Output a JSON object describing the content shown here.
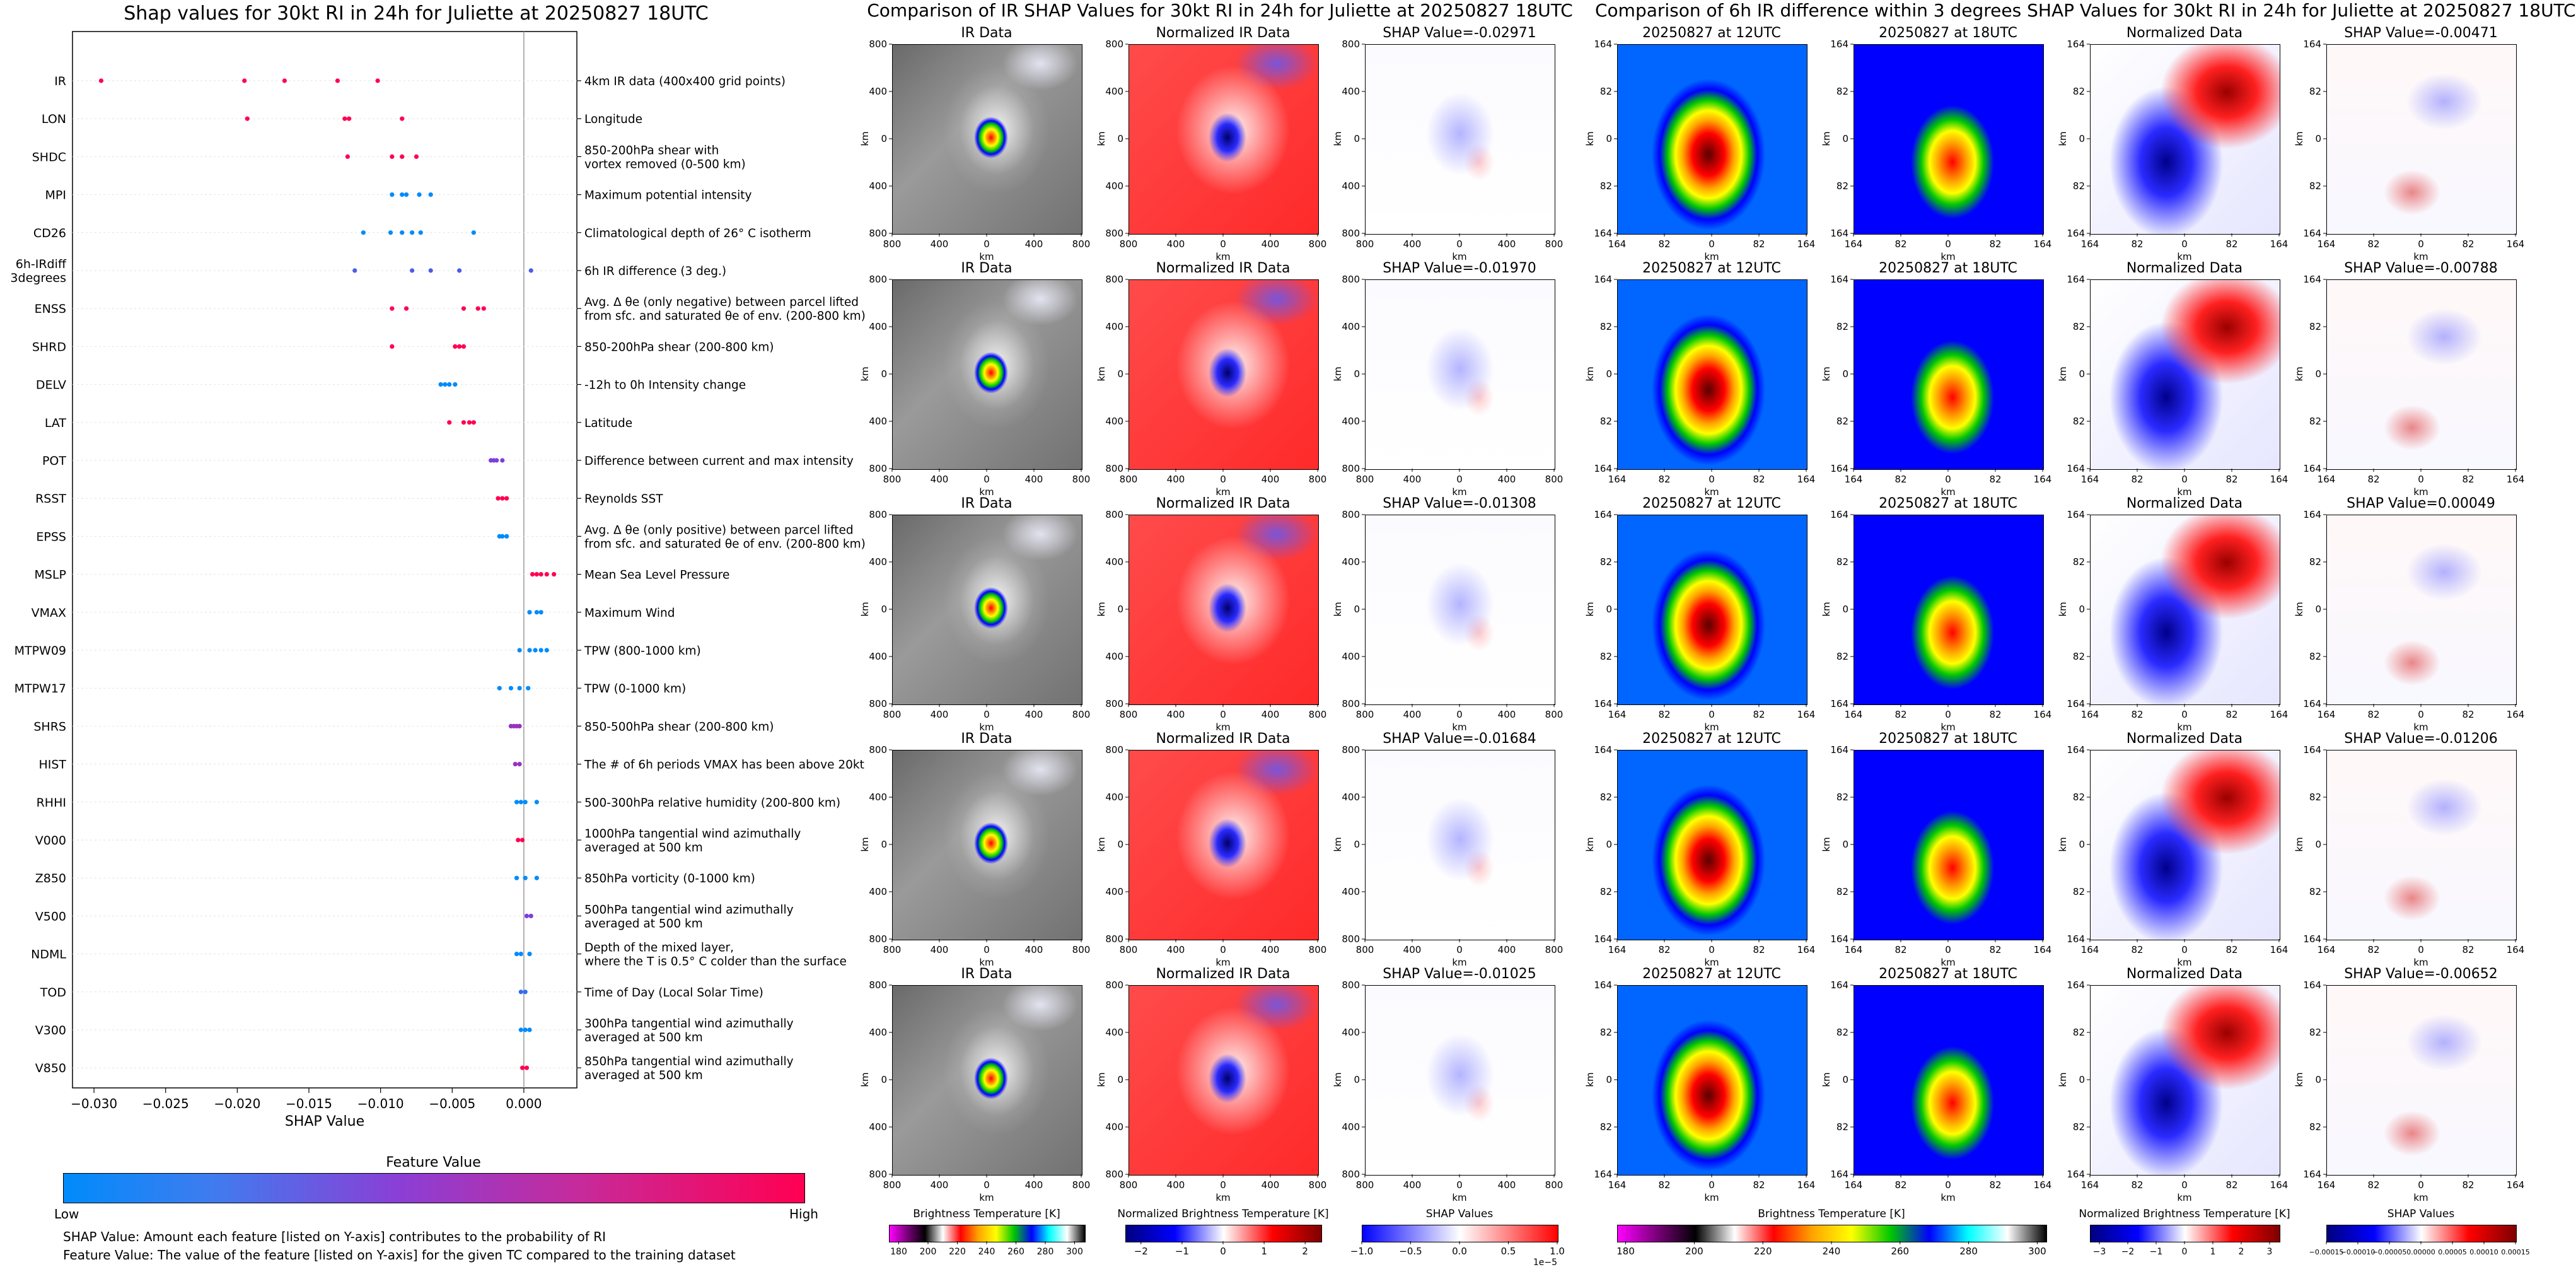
{
  "shap_panel": {
    "title": "Shap values for 30kt RI in 24h for Juliette at 20250827 18UTC",
    "xlabel": "SHAP Value",
    "feature_colorbar": {
      "label": "Feature Value",
      "low": "Low",
      "high": "High",
      "colors": [
        "#008bfb",
        "#7d3fd9",
        "#ff0052"
      ]
    },
    "notes": [
      "SHAP Value: Amount each feature [listed on Y-axis] contributes to the probability of RI",
      "Feature Value: The value of the feature [listed on Y-axis] for the given TC compared to the training dataset"
    ]
  },
  "chart_data": [
    {
      "type": "scatter",
      "title": "Shap values for 30kt RI in 24h for Juliette at 20250827 18UTC",
      "xlabel": "SHAP Value",
      "xlim": [
        -0.0315,
        0.0037
      ],
      "xticks": [
        -0.03,
        -0.025,
        -0.02,
        -0.015,
        -0.01,
        -0.005,
        0.0
      ],
      "xtick_labels": [
        "−0.030",
        "−0.025",
        "−0.020",
        "−0.015",
        "−0.010",
        "−0.005",
        "0.000"
      ],
      "features": [
        {
          "name": "IR",
          "desc": [
            "4km IR data (400x400 grid points)"
          ],
          "points": [
            [
              -0.0295,
              1
            ],
            [
              -0.0195,
              1
            ],
            [
              -0.0167,
              1
            ],
            [
              -0.013,
              1
            ],
            [
              -0.0102,
              1
            ]
          ]
        },
        {
          "name": "LON",
          "desc": [
            "Longitude"
          ],
          "points": [
            [
              -0.0193,
              1
            ],
            [
              -0.0125,
              1
            ],
            [
              -0.0122,
              1
            ],
            [
              -0.0085,
              1
            ]
          ]
        },
        {
          "name": "SHDC",
          "desc": [
            "850-200hPa shear with",
            "vortex removed (0-500 km)"
          ],
          "points": [
            [
              -0.0123,
              1
            ],
            [
              -0.0092,
              1
            ],
            [
              -0.0085,
              1
            ],
            [
              -0.0075,
              1
            ]
          ]
        },
        {
          "name": "MPI",
          "desc": [
            "Maximum potential intensity"
          ],
          "points": [
            [
              -0.0092,
              0
            ],
            [
              -0.0085,
              0
            ],
            [
              -0.0082,
              0
            ],
            [
              -0.0073,
              0
            ],
            [
              -0.0065,
              0
            ]
          ]
        },
        {
          "name": "CD26",
          "desc": [
            "Climatological depth of 26° C isotherm"
          ],
          "points": [
            [
              -0.0112,
              0
            ],
            [
              -0.0093,
              0
            ],
            [
              -0.0085,
              0
            ],
            [
              -0.0078,
              0
            ],
            [
              -0.0072,
              0
            ],
            [
              -0.0035,
              0
            ]
          ]
        },
        {
          "name": "6h-IRdiff\n3degrees",
          "desc": [
            "6h IR difference (3 deg.)"
          ],
          "points": [
            [
              -0.0118,
              0.3
            ],
            [
              -0.0078,
              0.3
            ],
            [
              -0.0065,
              0.3
            ],
            [
              -0.0045,
              0.3
            ],
            [
              0.0005,
              0.3
            ]
          ]
        },
        {
          "name": "ENSS",
          "desc": [
            "Avg. Δ θe (only negative) between parcel lifted",
            "from sfc. and saturated θe of env. (200-800 km)"
          ],
          "points": [
            [
              -0.0092,
              1
            ],
            [
              -0.0082,
              1
            ],
            [
              -0.0042,
              1
            ],
            [
              -0.0032,
              1
            ],
            [
              -0.0028,
              1
            ]
          ]
        },
        {
          "name": "SHRD",
          "desc": [
            "850-200hPa shear (200-800 km)"
          ],
          "points": [
            [
              -0.0092,
              1
            ],
            [
              -0.0048,
              1
            ],
            [
              -0.0045,
              1
            ],
            [
              -0.0042,
              1
            ]
          ]
        },
        {
          "name": "DELV",
          "desc": [
            "-12h to 0h Intensity change"
          ],
          "points": [
            [
              -0.0058,
              0
            ],
            [
              -0.0055,
              0
            ],
            [
              -0.0052,
              0
            ],
            [
              -0.0048,
              0
            ]
          ]
        },
        {
          "name": "LAT",
          "desc": [
            "Latitude"
          ],
          "points": [
            [
              -0.0052,
              1
            ],
            [
              -0.0042,
              1
            ],
            [
              -0.0038,
              1
            ],
            [
              -0.0035,
              1
            ]
          ]
        },
        {
          "name": "POT",
          "desc": [
            "Difference between current and max intensity"
          ],
          "points": [
            [
              -0.0023,
              0.5
            ],
            [
              -0.0021,
              0.5
            ],
            [
              -0.0019,
              0.5
            ],
            [
              -0.0015,
              0.5
            ]
          ]
        },
        {
          "name": "RSST",
          "desc": [
            "Reynolds SST"
          ],
          "points": [
            [
              -0.0018,
              1
            ],
            [
              -0.0015,
              1
            ],
            [
              -0.0012,
              1
            ]
          ]
        },
        {
          "name": "EPSS",
          "desc": [
            "Avg. Δ θe (only positive) between parcel lifted",
            "from sfc. and saturated θe of env. (200-800 km)"
          ],
          "points": [
            [
              -0.0017,
              0
            ],
            [
              -0.0015,
              0
            ],
            [
              -0.0012,
              0
            ]
          ]
        },
        {
          "name": "MSLP",
          "desc": [
            "Mean Sea Level Pressure"
          ],
          "points": [
            [
              0.0006,
              1
            ],
            [
              0.0009,
              1
            ],
            [
              0.0012,
              1
            ],
            [
              0.0016,
              1
            ],
            [
              0.0021,
              1
            ]
          ]
        },
        {
          "name": "VMAX",
          "desc": [
            "Maximum Wind"
          ],
          "points": [
            [
              0.0004,
              0
            ],
            [
              0.0009,
              0
            ],
            [
              0.0012,
              0
            ]
          ]
        },
        {
          "name": "MTPW09",
          "desc": [
            "TPW (800-1000 km)"
          ],
          "points": [
            [
              -0.0003,
              0
            ],
            [
              0.0004,
              0
            ],
            [
              0.0008,
              0
            ],
            [
              0.0012,
              0
            ],
            [
              0.0016,
              0
            ]
          ]
        },
        {
          "name": "MTPW17",
          "desc": [
            "TPW (0-1000 km)"
          ],
          "points": [
            [
              -0.0017,
              0
            ],
            [
              -0.0009,
              0
            ],
            [
              -0.0003,
              0
            ],
            [
              0.0003,
              0
            ]
          ]
        },
        {
          "name": "SHRS",
          "desc": [
            "850-500hPa shear (200-800 km)"
          ],
          "points": [
            [
              -0.0009,
              0.6
            ],
            [
              -0.0007,
              0.6
            ],
            [
              -0.0005,
              0.6
            ],
            [
              -0.0003,
              0.6
            ]
          ]
        },
        {
          "name": "HIST",
          "desc": [
            "The # of 6h periods VMAX has been above 20kt"
          ],
          "points": [
            [
              -0.0006,
              0.6
            ],
            [
              -0.0003,
              0.6
            ]
          ]
        },
        {
          "name": "RHHI",
          "desc": [
            "500-300hPa relative humidity (200-800 km)"
          ],
          "points": [
            [
              -0.0005,
              0
            ],
            [
              -0.0002,
              0
            ],
            [
              0.0001,
              0
            ],
            [
              0.0009,
              0
            ]
          ]
        },
        {
          "name": "V000",
          "desc": [
            "1000hPa tangential wind azimuthally",
            "averaged at 500 km"
          ],
          "points": [
            [
              -0.0004,
              1
            ],
            [
              -0.0001,
              1
            ]
          ]
        },
        {
          "name": "Z850",
          "desc": [
            "850hPa vorticity (0-1000 km)"
          ],
          "points": [
            [
              -0.0005,
              0
            ],
            [
              0.0001,
              0
            ],
            [
              0.0009,
              0
            ]
          ]
        },
        {
          "name": "V500",
          "desc": [
            "500hPa tangential wind azimuthally",
            "averaged at 500 km"
          ],
          "points": [
            [
              0.0002,
              0.5
            ],
            [
              0.0005,
              0.5
            ]
          ]
        },
        {
          "name": "NDML",
          "desc": [
            "Depth of the mixed layer,",
            "where the T is 0.5° C colder than the surface"
          ],
          "points": [
            [
              -0.0005,
              0
            ],
            [
              -0.0002,
              0
            ],
            [
              0.0004,
              0
            ]
          ]
        },
        {
          "name": "TOD",
          "desc": [
            "Time of Day (Local Solar Time)"
          ],
          "points": [
            [
              -0.0002,
              0.2
            ],
            [
              0.0001,
              0.2
            ]
          ]
        },
        {
          "name": "V300",
          "desc": [
            "300hPa tangential wind azimuthally",
            "averaged at 500 km"
          ],
          "points": [
            [
              -0.0002,
              0
            ],
            [
              0.0001,
              0
            ],
            [
              0.0004,
              0
            ]
          ]
        },
        {
          "name": "V850",
          "desc": [
            "850hPa tangential wind azimuthally",
            "averaged at 500 km"
          ],
          "points": [
            [
              -0.0001,
              1
            ],
            [
              0.0002,
              1
            ]
          ]
        }
      ]
    },
    {
      "type": "heatmap",
      "title": "Comparison of IR SHAP Values for 30kt RI in 24h for Juliette at 20250827 18UTC",
      "columns": [
        "IR Data",
        "Normalized IR Data",
        "SHAP"
      ],
      "shap_titles": [
        "SHAP Value=-0.02971",
        "SHAP Value=-0.01970",
        "SHAP Value=-0.01308",
        "SHAP Value=-0.01684",
        "SHAP Value=-0.01025"
      ],
      "axis_label": "km",
      "xticks": [
        "800",
        "400",
        "0",
        "400",
        "800"
      ],
      "yticks": [
        "800",
        "400",
        "0",
        "400",
        "800"
      ],
      "colorbars": [
        {
          "label": "Brightness Temperature [K]",
          "ticks": [
            "180",
            "200",
            "220",
            "240",
            "260",
            "280",
            "300"
          ],
          "stops": [
            "#ff00ff",
            "#7a007a",
            "#000000",
            "#ffffff",
            "#ff0000",
            "#ffa500",
            "#ffff00",
            "#00c800",
            "#0000ff",
            "#00ffff",
            "#ffffff",
            "#000000"
          ]
        },
        {
          "label": "Normalized Brightness Temperature [K]",
          "ticks": [
            "−2",
            "−1",
            "0",
            "1",
            "2"
          ],
          "stops": [
            "#00007f",
            "#0000ff",
            "#ffffff",
            "#ff0000",
            "#7f0000"
          ]
        },
        {
          "label": "SHAP Values",
          "ticks": [
            "−1.0",
            "−0.5",
            "0.0",
            "0.5",
            "1.0"
          ],
          "exponent": "1e−5",
          "stops": [
            "#0000ff",
            "#ffffff",
            "#ff0000"
          ]
        }
      ]
    },
    {
      "type": "heatmap",
      "title": "Comparison of 6h IR difference within 3 degrees SHAP Values for 30kt RI in 24h for Juliette at 20250827 18UTC",
      "columns": [
        "20250827 at 12UTC",
        "20250827 at 18UTC",
        "Normalized Data",
        "SHAP"
      ],
      "shap_titles": [
        "SHAP Value=-0.00471",
        "SHAP Value=-0.00788",
        "SHAP Value=0.00049",
        "SHAP Value=-0.01206",
        "SHAP Value=-0.00652"
      ],
      "axis_label": "km",
      "xticks": [
        "164",
        "82",
        "0",
        "82",
        "164"
      ],
      "yticks": [
        "164",
        "82",
        "0",
        "82",
        "164"
      ],
      "colorbars": [
        {
          "label": "Brightness Temperature [K]",
          "ticks": [
            "180",
            "200",
            "220",
            "240",
            "260",
            "280",
            "300"
          ],
          "stops": [
            "#ff00ff",
            "#7a007a",
            "#000000",
            "#ffffff",
            "#ff0000",
            "#ffa500",
            "#ffff00",
            "#00c800",
            "#0000ff",
            "#00ffff",
            "#ffffff",
            "#000000"
          ]
        },
        {
          "label": "Normalized Brightness Temperature [K]",
          "ticks": [
            "−3",
            "−2",
            "−1",
            "0",
            "1",
            "2",
            "3"
          ],
          "stops": [
            "#00007f",
            "#0000ff",
            "#ffffff",
            "#ff0000",
            "#7f0000"
          ]
        },
        {
          "label": "SHAP Values",
          "ticks": [
            "−0.00015",
            "−0.00010",
            "−0.00005",
            "0.00000",
            "0.00005",
            "0.00010",
            "0.00015"
          ],
          "stops": [
            "#00007f",
            "#0000ff",
            "#ffffff",
            "#ff0000",
            "#7f0000"
          ]
        }
      ]
    }
  ]
}
